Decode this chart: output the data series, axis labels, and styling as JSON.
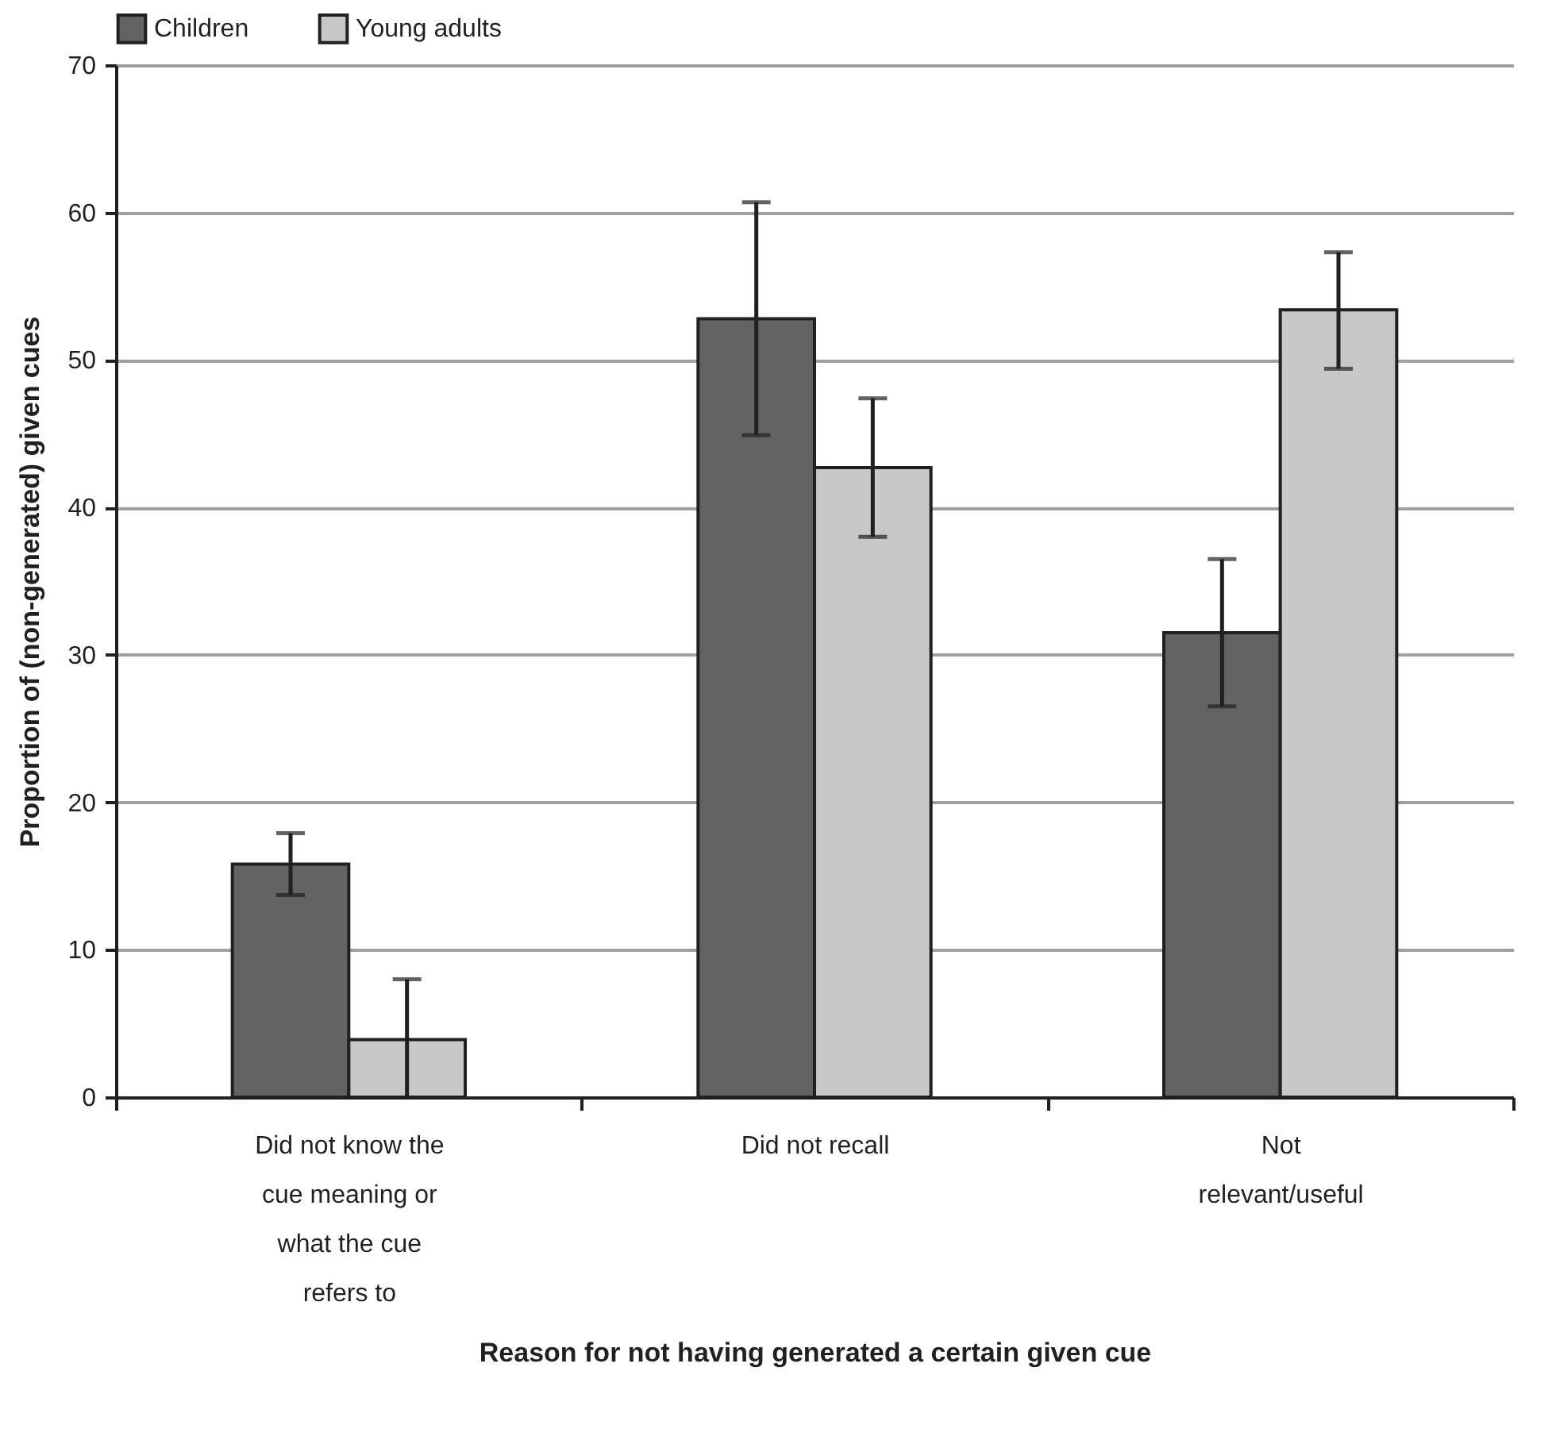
{
  "chart_data": {
    "type": "bar",
    "xlabel": "Reason for not having generated a certain given cue",
    "ylabel": "Proportion of (non-generated) given cues",
    "categories": [
      "Did not know the cue meaning or what the cue refers to",
      "Did not recall",
      "Not relevant/useful"
    ],
    "series": [
      {
        "name": "Children",
        "color": "#636365",
        "values": [
          15.8,
          52.8,
          31.5
        ],
        "errors": [
          [
            13.7,
            17.9
          ],
          [
            44.9,
            60.7
          ],
          [
            26.5,
            36.5
          ]
        ]
      },
      {
        "name": "Young adults",
        "color": "#c6c7c9",
        "values": [
          3.9,
          42.7,
          53.4
        ],
        "errors": [
          [
            0,
            8.0
          ],
          [
            38.0,
            47.4
          ],
          [
            49.4,
            57.3
          ]
        ]
      }
    ],
    "ylim": [
      0,
      70
    ],
    "yticks": [
      0,
      10,
      20,
      30,
      40,
      50,
      60,
      70
    ],
    "grid": "y",
    "legend": "top"
  }
}
